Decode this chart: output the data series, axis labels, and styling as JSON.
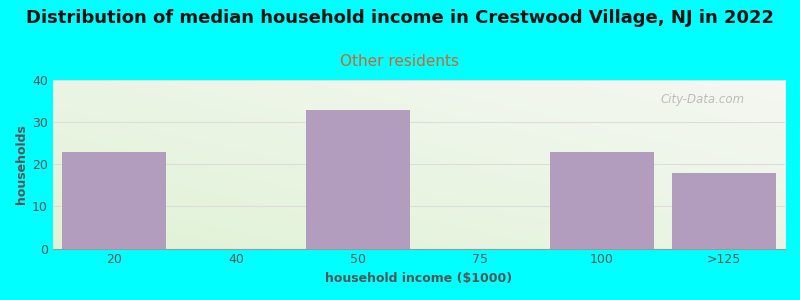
{
  "title": "Distribution of median household income in Crestwood Village, NJ in 2022",
  "subtitle": "Other residents",
  "xlabel": "household income ($1000)",
  "ylabel": "households",
  "categories": [
    "20",
    "40",
    "50",
    "75",
    "100",
    ">125"
  ],
  "values": [
    23,
    0,
    33,
    0,
    23,
    18
  ],
  "bar_color": "#b39dbe",
  "bar_width": 0.85,
  "ylim": [
    0,
    40
  ],
  "yticks": [
    0,
    10,
    20,
    30,
    40
  ],
  "background_color": "#00ffff",
  "plot_bg_top_right": "#f5f5f0",
  "plot_bg_bottom_left": "#dff0d8",
  "title_fontsize": 13,
  "subtitle_fontsize": 11,
  "subtitle_color": "#cc6633",
  "axis_label_fontsize": 9,
  "tick_fontsize": 9,
  "tick_color": "#555555",
  "watermark_text": "City-Data.com",
  "watermark_color": "#aaaaaa",
  "grid_color": "#dddddd",
  "title_color": "#111111"
}
